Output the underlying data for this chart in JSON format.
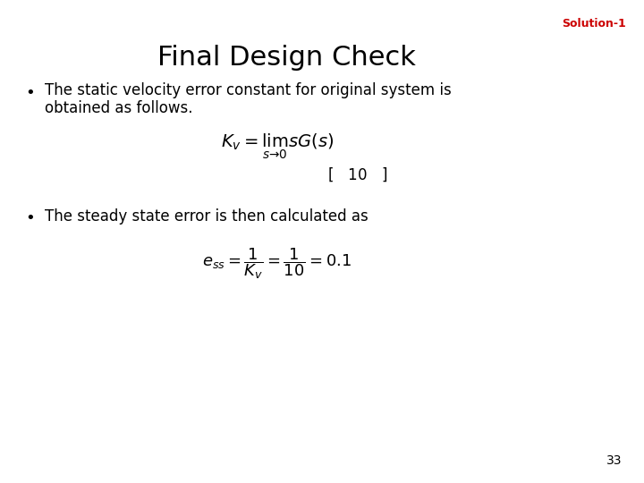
{
  "title": "Final Design Check",
  "solution_label": "Solution-1",
  "bullet1_line1": "The static velocity error constant for original system is",
  "bullet1_line2": "obtained as follows.",
  "formula1": "$K_v = \\lim_{s \\to 0} sG(s)$",
  "formula1b": "$[ \\quad 10 \\quad ]$",
  "bullet2": "The steady state error is then calculated as",
  "formula2": "$e_{ss} = \\dfrac{1}{K_v} = \\dfrac{1}{10} = 0.1$",
  "page_number": "33",
  "bg_color": "#ffffff",
  "title_color": "#000000",
  "solution_color": "#cc0000",
  "bullet_color": "#000000",
  "formula_color": "#000000",
  "page_color": "#000000",
  "title_fontsize": 22,
  "solution_fontsize": 9,
  "bullet_fontsize": 12,
  "formula_fontsize": 14,
  "formula2_fontsize": 13,
  "page_fontsize": 10
}
